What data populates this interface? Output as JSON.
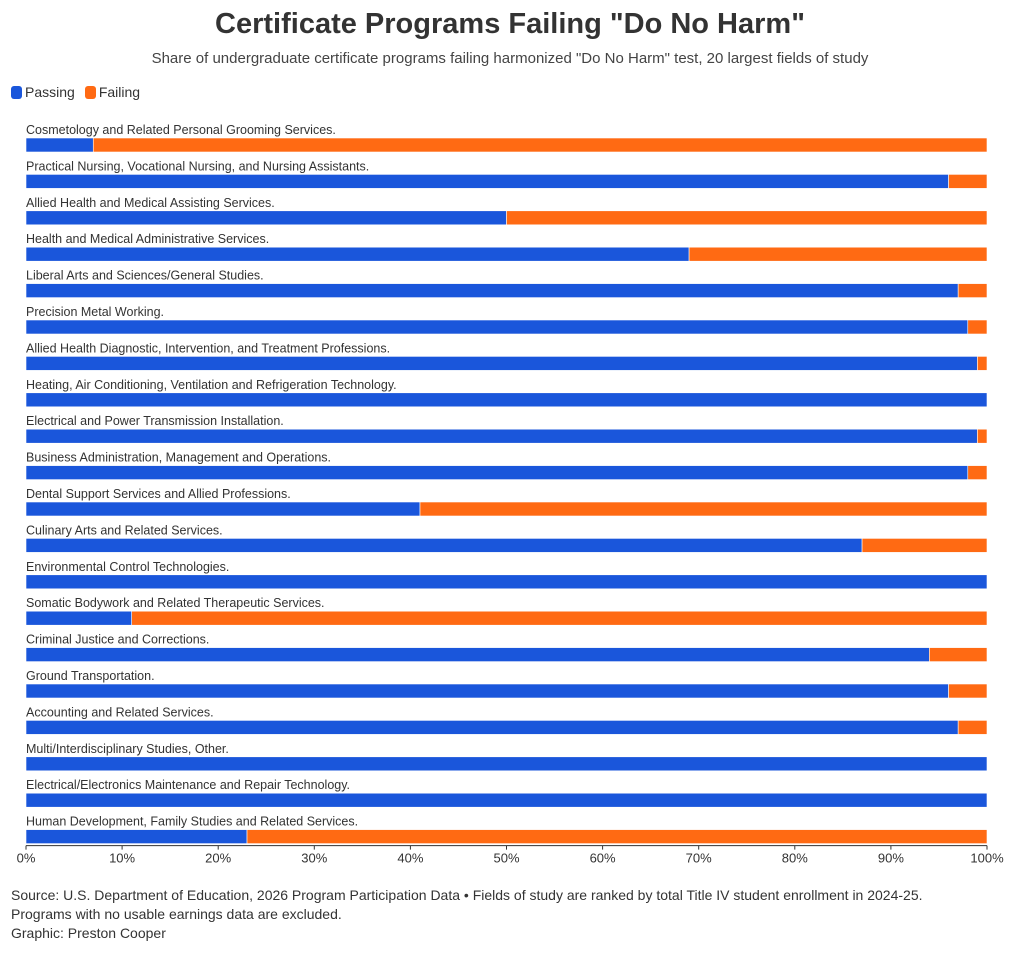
{
  "colors": {
    "passing": "#1a56db",
    "failing": "#ff6a13",
    "axis": "#333333"
  },
  "legend": {
    "passing": "Passing",
    "failing": "Failing"
  },
  "footer": {
    "source": "Source: U.S. Department of Education, 2026 Program Participation Data • Fields of study are ranked by total Title IV student enrollment in 2024-25.",
    "note": "Programs with no usable earnings data are excluded.",
    "credit": "Graphic: Preston Cooper"
  },
  "chart_data": {
    "type": "bar",
    "orientation": "horizontal",
    "stacked": true,
    "title": "Certificate Programs Failing \"Do No Harm\"",
    "subtitle": "Share of undergraduate certificate programs failing harmonized \"Do No Harm\" test, 20 largest fields of study",
    "xlim": [
      0,
      100
    ],
    "x_ticks": [
      "0%",
      "10%",
      "20%",
      "30%",
      "40%",
      "50%",
      "60%",
      "70%",
      "80%",
      "90%",
      "100%"
    ],
    "legend_position": "top-left",
    "categories": [
      "Cosmetology and Related Personal Grooming Services.",
      "Practical Nursing, Vocational Nursing, and Nursing Assistants.",
      "Allied Health and Medical Assisting Services.",
      "Health and Medical Administrative Services.",
      "Liberal Arts and Sciences/General Studies.",
      "Precision Metal Working.",
      "Allied Health Diagnostic, Intervention, and Treatment Professions.",
      "Heating, Air Conditioning, Ventilation and Refrigeration Technology.",
      "Electrical and Power Transmission Installation.",
      "Business Administration, Management and Operations.",
      "Dental Support Services and Allied Professions.",
      "Culinary Arts and Related Services.",
      "Environmental Control Technologies.",
      "Somatic Bodywork and Related Therapeutic Services.",
      "Criminal Justice and Corrections.",
      "Ground Transportation.",
      "Accounting and Related Services.",
      "Multi/Interdisciplinary Studies, Other.",
      "Electrical/Electronics Maintenance and Repair Technology.",
      "Human Development, Family Studies and Related Services."
    ],
    "series": [
      {
        "name": "Passing",
        "values": [
          7,
          96,
          50,
          69,
          97,
          98,
          99,
          100,
          99,
          98,
          41,
          87,
          100,
          11,
          94,
          96,
          97,
          100,
          100,
          23
        ]
      },
      {
        "name": "Failing",
        "values": [
          93,
          4,
          50,
          31,
          3,
          2,
          1,
          0,
          1,
          2,
          59,
          13,
          0,
          89,
          6,
          4,
          3,
          0,
          0,
          77
        ]
      }
    ]
  }
}
